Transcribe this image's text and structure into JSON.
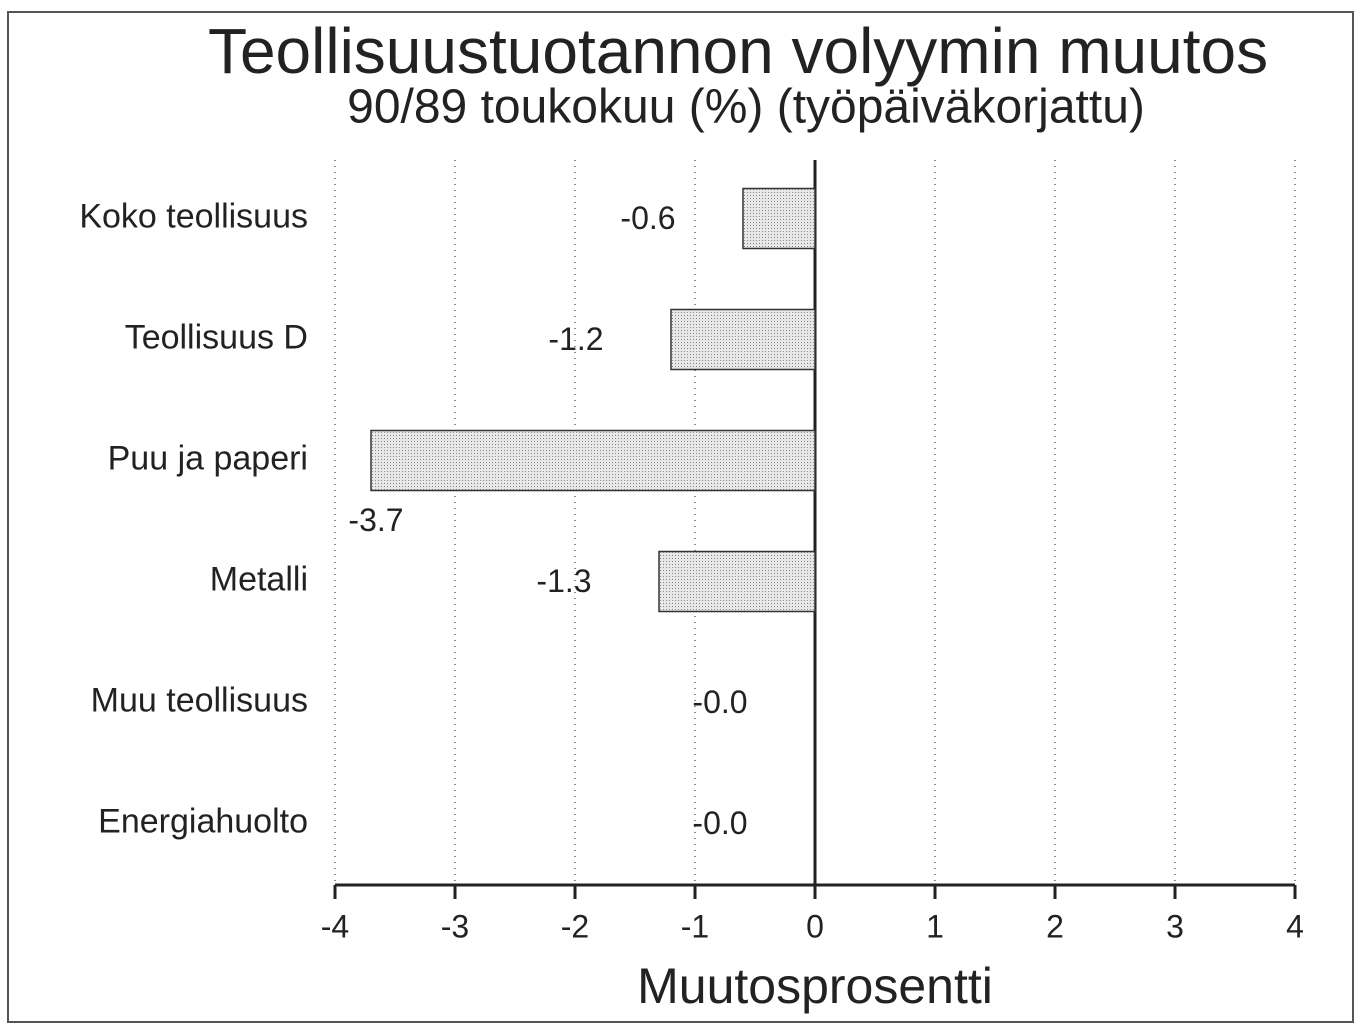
{
  "chart_data": {
    "type": "bar",
    "orientation": "horizontal",
    "title": "Teollisuustuotannon volyymin muutos",
    "subtitle": "90/89 toukokuu (%) (työpäiväkorjattu)",
    "x_label": "Muutosprosentti",
    "categories": [
      "Koko teollisuus",
      "Teollisuus D",
      "Puu ja paperi",
      "Metalli",
      "Muu teollisuus",
      "Energiahuolto"
    ],
    "values": [
      -0.6,
      -1.2,
      -3.7,
      -1.3,
      0,
      0
    ],
    "value_labels": [
      "-0.6",
      "-1.2",
      "-3.7",
      "-1.3",
      "-0.0",
      "-0.0"
    ],
    "color": "#dcdcdc",
    "xlim": [
      -4,
      4
    ],
    "xticks": [
      -4,
      -3,
      -2,
      -1,
      0,
      1,
      2,
      3,
      4
    ],
    "grid": true
  }
}
